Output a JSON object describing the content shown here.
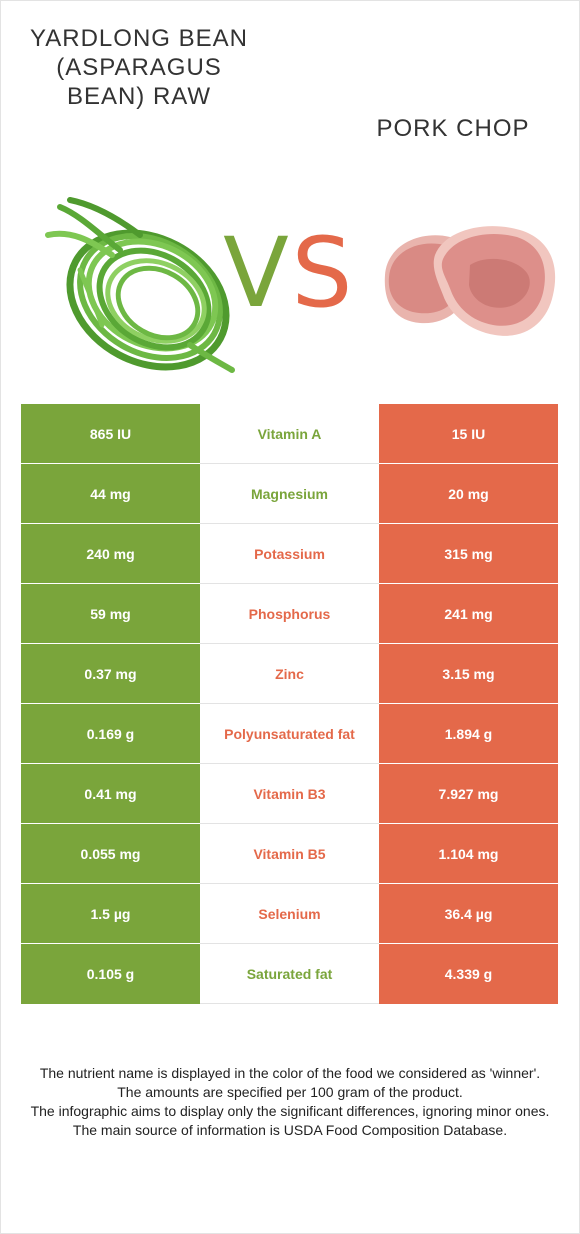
{
  "left_food": {
    "name": "Yardlong bean (Asparagus bean) raw",
    "color": "#7aa53b"
  },
  "right_food": {
    "name": "Pork chop",
    "color": "#e4694a"
  },
  "vs": {
    "v": "V",
    "s": "S"
  },
  "rows": [
    {
      "left": "865 IU",
      "nutrient": "Vitamin A",
      "right": "15 IU",
      "winner": "left"
    },
    {
      "left": "44 mg",
      "nutrient": "Magnesium",
      "right": "20 mg",
      "winner": "left"
    },
    {
      "left": "240 mg",
      "nutrient": "Potassium",
      "right": "315 mg",
      "winner": "right"
    },
    {
      "left": "59 mg",
      "nutrient": "Phosphorus",
      "right": "241 mg",
      "winner": "right"
    },
    {
      "left": "0.37 mg",
      "nutrient": "Zinc",
      "right": "3.15 mg",
      "winner": "right"
    },
    {
      "left": "0.169 g",
      "nutrient": "Polyunsaturated fat",
      "right": "1.894 g",
      "winner": "right"
    },
    {
      "left": "0.41 mg",
      "nutrient": "Vitamin B3",
      "right": "7.927 mg",
      "winner": "right"
    },
    {
      "left": "0.055 mg",
      "nutrient": "Vitamin B5",
      "right": "1.104 mg",
      "winner": "right"
    },
    {
      "left": "1.5 µg",
      "nutrient": "Selenium",
      "right": "36.4 µg",
      "winner": "right"
    },
    {
      "left": "0.105 g",
      "nutrient": "Saturated fat",
      "right": "4.339 g",
      "winner": "left"
    }
  ],
  "footer": [
    "The nutrient name is displayed in the color of the food we considered as 'winner'.",
    "The amounts are specified per 100 gram of the product.",
    "The infographic aims to display only the significant differences, ignoring minor ones.",
    "The main source of information is USDA Food Composition Database."
  ]
}
